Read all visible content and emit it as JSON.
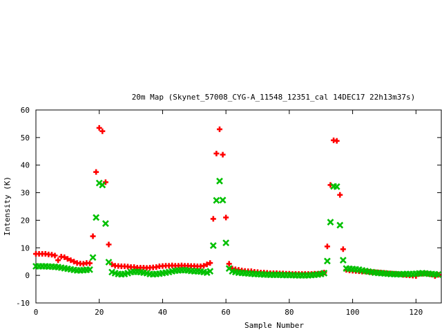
{
  "chart_data": {
    "type": "scatter",
    "title": "20m Map (Skynet_57008_CYG-A_11548_12351_cal 14DEC17 22h13m37s)",
    "xlabel": "Sample Number",
    "ylabel": "Intensity (K)",
    "xlim": [
      0,
      128
    ],
    "ylim": [
      -10,
      60
    ],
    "xticks": [
      0,
      20,
      40,
      60,
      80,
      100,
      120
    ],
    "yticks": [
      -10,
      0,
      10,
      20,
      30,
      40,
      50,
      60
    ],
    "grid": false,
    "legend": "none",
    "series": [
      {
        "marker": "plus",
        "color": "#ff0000",
        "points": [
          [
            0,
            7.8
          ],
          [
            1,
            7.8
          ],
          [
            2,
            7.8
          ],
          [
            3,
            7.8
          ],
          [
            4,
            7.6
          ],
          [
            5,
            7.5
          ],
          [
            6,
            7.2
          ],
          [
            7,
            5.5
          ],
          [
            8,
            6.8
          ],
          [
            9,
            6.6
          ],
          [
            10,
            6.0
          ],
          [
            11,
            5.5
          ],
          [
            12,
            5.0
          ],
          [
            13,
            4.5
          ],
          [
            14,
            4.3
          ],
          [
            15,
            4.2
          ],
          [
            16,
            4.5
          ],
          [
            17,
            4.4
          ],
          [
            18,
            14.2
          ],
          [
            19,
            37.5
          ],
          [
            20,
            53.5
          ],
          [
            21,
            52.3
          ],
          [
            22,
            33.8
          ],
          [
            23,
            11.2
          ],
          [
            24,
            4.0
          ],
          [
            25,
            3.5
          ],
          [
            26,
            3.4
          ],
          [
            27,
            3.3
          ],
          [
            28,
            3.3
          ],
          [
            29,
            3.2
          ],
          [
            30,
            3.0
          ],
          [
            31,
            3.0
          ],
          [
            32,
            2.8
          ],
          [
            33,
            2.8
          ],
          [
            34,
            2.8
          ],
          [
            35,
            2.7
          ],
          [
            36,
            2.8
          ],
          [
            37,
            2.9
          ],
          [
            38,
            3.0
          ],
          [
            39,
            3.3
          ],
          [
            40,
            3.4
          ],
          [
            41,
            3.5
          ],
          [
            42,
            3.5
          ],
          [
            43,
            3.6
          ],
          [
            44,
            3.5
          ],
          [
            45,
            3.5
          ],
          [
            46,
            3.6
          ],
          [
            47,
            3.5
          ],
          [
            48,
            3.5
          ],
          [
            49,
            3.4
          ],
          [
            50,
            3.4
          ],
          [
            51,
            3.3
          ],
          [
            52,
            3.3
          ],
          [
            53,
            3.5
          ],
          [
            54,
            4.0
          ],
          [
            55,
            4.5
          ],
          [
            56,
            20.5
          ],
          [
            57,
            44.2
          ],
          [
            58,
            53.0
          ],
          [
            59,
            43.8
          ],
          [
            60,
            21.0
          ],
          [
            61,
            4.2
          ],
          [
            62,
            2.5
          ],
          [
            63,
            2.2
          ],
          [
            64,
            2.0
          ],
          [
            65,
            1.8
          ],
          [
            66,
            1.6
          ],
          [
            67,
            1.5
          ],
          [
            68,
            1.5
          ],
          [
            69,
            1.3
          ],
          [
            70,
            1.2
          ],
          [
            71,
            1.0
          ],
          [
            72,
            1.0
          ],
          [
            73,
            0.9
          ],
          [
            74,
            0.8
          ],
          [
            75,
            0.8
          ],
          [
            76,
            0.8
          ],
          [
            77,
            0.7
          ],
          [
            78,
            0.7
          ],
          [
            79,
            0.6
          ],
          [
            80,
            0.6
          ],
          [
            81,
            0.5
          ],
          [
            82,
            0.5
          ],
          [
            83,
            0.5
          ],
          [
            84,
            0.5
          ],
          [
            85,
            0.5
          ],
          [
            86,
            0.5
          ],
          [
            87,
            0.5
          ],
          [
            88,
            0.6
          ],
          [
            89,
            0.6
          ],
          [
            90,
            0.7
          ],
          [
            91,
            1.0
          ],
          [
            92,
            10.5
          ],
          [
            93,
            32.8
          ],
          [
            94,
            49.0
          ],
          [
            95,
            48.8
          ],
          [
            96,
            29.2
          ],
          [
            97,
            9.5
          ],
          [
            98,
            2.0
          ],
          [
            99,
            1.8
          ],
          [
            100,
            1.7
          ],
          [
            101,
            1.6
          ],
          [
            102,
            1.5
          ],
          [
            103,
            1.4
          ],
          [
            104,
            1.4
          ],
          [
            105,
            1.3
          ],
          [
            106,
            1.2
          ],
          [
            107,
            1.2
          ],
          [
            108,
            1.1
          ],
          [
            109,
            1.0
          ],
          [
            110,
            0.9
          ],
          [
            111,
            0.8
          ],
          [
            112,
            0.7
          ],
          [
            113,
            0.6
          ],
          [
            114,
            0.5
          ],
          [
            115,
            0.4
          ],
          [
            116,
            0.2
          ],
          [
            117,
            0.1
          ],
          [
            118,
            0.0
          ],
          [
            119,
            -0.1
          ],
          [
            120,
            -0.2
          ],
          [
            121,
            0.5
          ],
          [
            122,
            0.6
          ],
          [
            123,
            0.7
          ],
          [
            124,
            0.5
          ],
          [
            125,
            0.3
          ],
          [
            126,
            -0.2
          ],
          [
            127,
            0.2
          ]
        ]
      },
      {
        "marker": "cross",
        "color": "#00c000",
        "points": [
          [
            0,
            3.3
          ],
          [
            1,
            3.3
          ],
          [
            2,
            3.3
          ],
          [
            3,
            3.3
          ],
          [
            4,
            3.2
          ],
          [
            5,
            3.2
          ],
          [
            6,
            3.1
          ],
          [
            7,
            3.0
          ],
          [
            8,
            2.8
          ],
          [
            9,
            2.6
          ],
          [
            10,
            2.4
          ],
          [
            11,
            2.2
          ],
          [
            12,
            2.0
          ],
          [
            13,
            1.8
          ],
          [
            14,
            1.8
          ],
          [
            15,
            1.9
          ],
          [
            16,
            2.0
          ],
          [
            17,
            2.1
          ],
          [
            18,
            6.5
          ],
          [
            19,
            21.0
          ],
          [
            20,
            33.5
          ],
          [
            21,
            32.8
          ],
          [
            22,
            18.8
          ],
          [
            23,
            4.8
          ],
          [
            24,
            1.2
          ],
          [
            25,
            0.8
          ],
          [
            26,
            0.5
          ],
          [
            27,
            0.4
          ],
          [
            28,
            0.5
          ],
          [
            29,
            0.8
          ],
          [
            30,
            1.2
          ],
          [
            31,
            1.3
          ],
          [
            32,
            1.3
          ],
          [
            33,
            1.2
          ],
          [
            34,
            1.0
          ],
          [
            35,
            0.8
          ],
          [
            36,
            0.5
          ],
          [
            37,
            0.4
          ],
          [
            38,
            0.5
          ],
          [
            39,
            0.6
          ],
          [
            40,
            0.8
          ],
          [
            41,
            1.0
          ],
          [
            42,
            1.2
          ],
          [
            43,
            1.5
          ],
          [
            44,
            1.7
          ],
          [
            45,
            1.8
          ],
          [
            46,
            1.9
          ],
          [
            47,
            1.9
          ],
          [
            48,
            1.8
          ],
          [
            49,
            1.6
          ],
          [
            50,
            1.5
          ],
          [
            51,
            1.5
          ],
          [
            52,
            1.4
          ],
          [
            53,
            1.2
          ],
          [
            54,
            1.0
          ],
          [
            55,
            1.5
          ],
          [
            56,
            10.8
          ],
          [
            57,
            27.2
          ],
          [
            58,
            34.2
          ],
          [
            59,
            27.3
          ],
          [
            60,
            11.8
          ],
          [
            61,
            2.5
          ],
          [
            62,
            1.5
          ],
          [
            63,
            1.2
          ],
          [
            64,
            1.0
          ],
          [
            65,
            0.9
          ],
          [
            66,
            0.8
          ],
          [
            67,
            0.7
          ],
          [
            68,
            0.6
          ],
          [
            69,
            0.5
          ],
          [
            70,
            0.5
          ],
          [
            71,
            0.4
          ],
          [
            72,
            0.3
          ],
          [
            73,
            0.3
          ],
          [
            74,
            0.2
          ],
          [
            75,
            0.2
          ],
          [
            76,
            0.2
          ],
          [
            77,
            0.2
          ],
          [
            78,
            0.1
          ],
          [
            79,
            0.1
          ],
          [
            80,
            0.1
          ],
          [
            81,
            0.1
          ],
          [
            82,
            0.0
          ],
          [
            83,
            0.0
          ],
          [
            84,
            0.0
          ],
          [
            85,
            0.0
          ],
          [
            86,
            0.0
          ],
          [
            87,
            0.1
          ],
          [
            88,
            0.2
          ],
          [
            89,
            0.3
          ],
          [
            90,
            0.5
          ],
          [
            91,
            0.8
          ],
          [
            92,
            5.2
          ],
          [
            93,
            19.3
          ],
          [
            94,
            32.3
          ],
          [
            95,
            32.2
          ],
          [
            96,
            18.2
          ],
          [
            97,
            5.5
          ],
          [
            98,
            2.5
          ],
          [
            99,
            2.4
          ],
          [
            100,
            2.3
          ],
          [
            101,
            2.2
          ],
          [
            102,
            2.1
          ],
          [
            103,
            1.8
          ],
          [
            104,
            1.6
          ],
          [
            105,
            1.4
          ],
          [
            106,
            1.2
          ],
          [
            107,
            1.0
          ],
          [
            108,
            0.9
          ],
          [
            109,
            0.8
          ],
          [
            110,
            0.7
          ],
          [
            111,
            0.6
          ],
          [
            112,
            0.5
          ],
          [
            113,
            0.5
          ],
          [
            114,
            0.4
          ],
          [
            115,
            0.4
          ],
          [
            116,
            0.5
          ],
          [
            117,
            0.5
          ],
          [
            118,
            0.5
          ],
          [
            119,
            0.5
          ],
          [
            120,
            0.6
          ],
          [
            121,
            0.7
          ],
          [
            122,
            0.8
          ],
          [
            123,
            0.7
          ],
          [
            124,
            0.6
          ],
          [
            125,
            0.5
          ],
          [
            126,
            0.4
          ],
          [
            127,
            0.3
          ]
        ]
      }
    ]
  }
}
